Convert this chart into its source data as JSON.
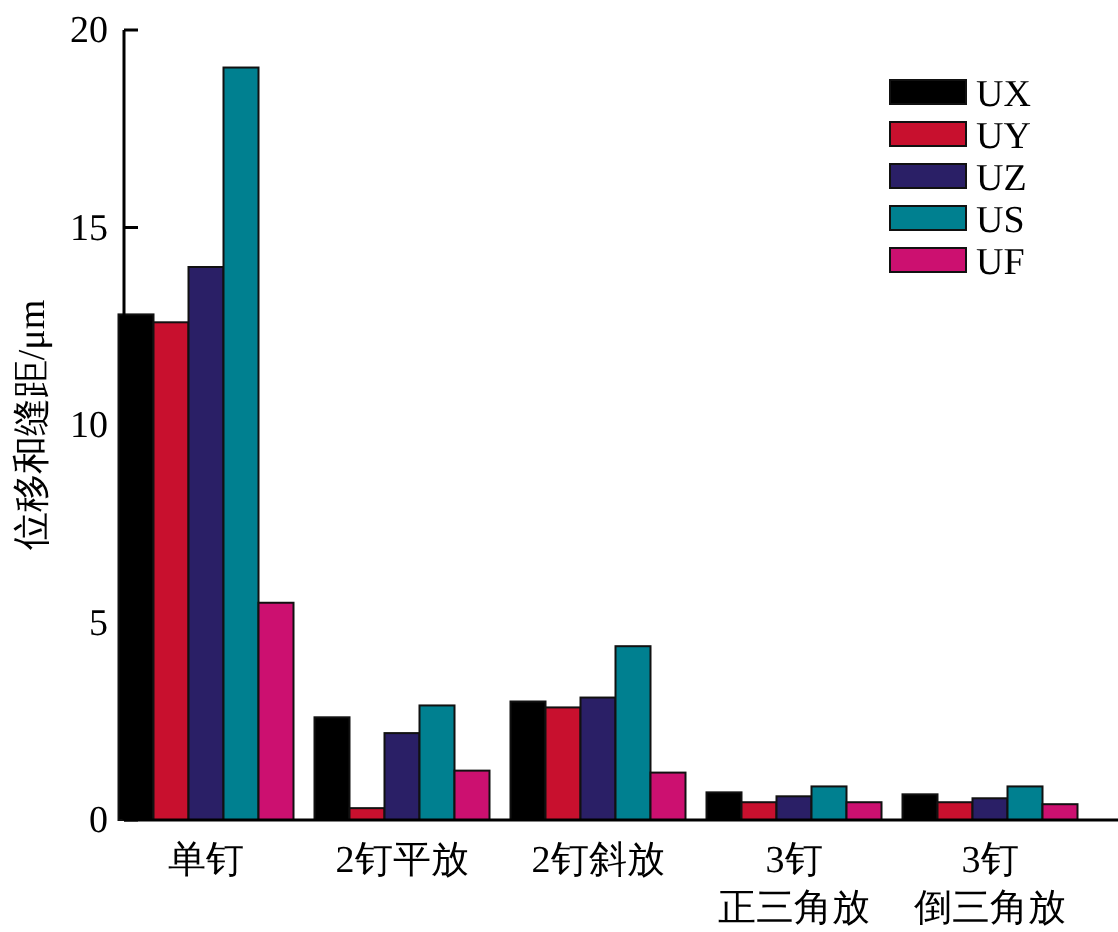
{
  "chart_data": {
    "type": "bar",
    "ylabel": "位移和缝距/μm",
    "categories": [
      "单钉",
      "2钉平放",
      "2钉斜放",
      "3钉正三角放",
      "3钉倒三角放"
    ],
    "series": [
      {
        "name": "UX",
        "color": "#000000",
        "values": [
          12.8,
          2.6,
          3.0,
          0.7,
          0.65
        ]
      },
      {
        "name": "UY",
        "color": "#c8102e",
        "values": [
          12.6,
          0.3,
          2.85,
          0.45,
          0.45
        ]
      },
      {
        "name": "UZ",
        "color": "#2a1f66",
        "values": [
          14.0,
          2.2,
          3.1,
          0.6,
          0.55
        ]
      },
      {
        "name": "US",
        "color": "#008090",
        "values": [
          19.05,
          2.9,
          4.4,
          0.85,
          0.85
        ]
      },
      {
        "name": "UF",
        "color": "#cc1070",
        "values": [
          5.5,
          1.25,
          1.2,
          0.45,
          0.4
        ]
      }
    ],
    "ylim": [
      0,
      20
    ],
    "yticks": [
      0,
      5,
      10,
      15,
      20
    ],
    "grid": false,
    "legend": "top right"
  }
}
